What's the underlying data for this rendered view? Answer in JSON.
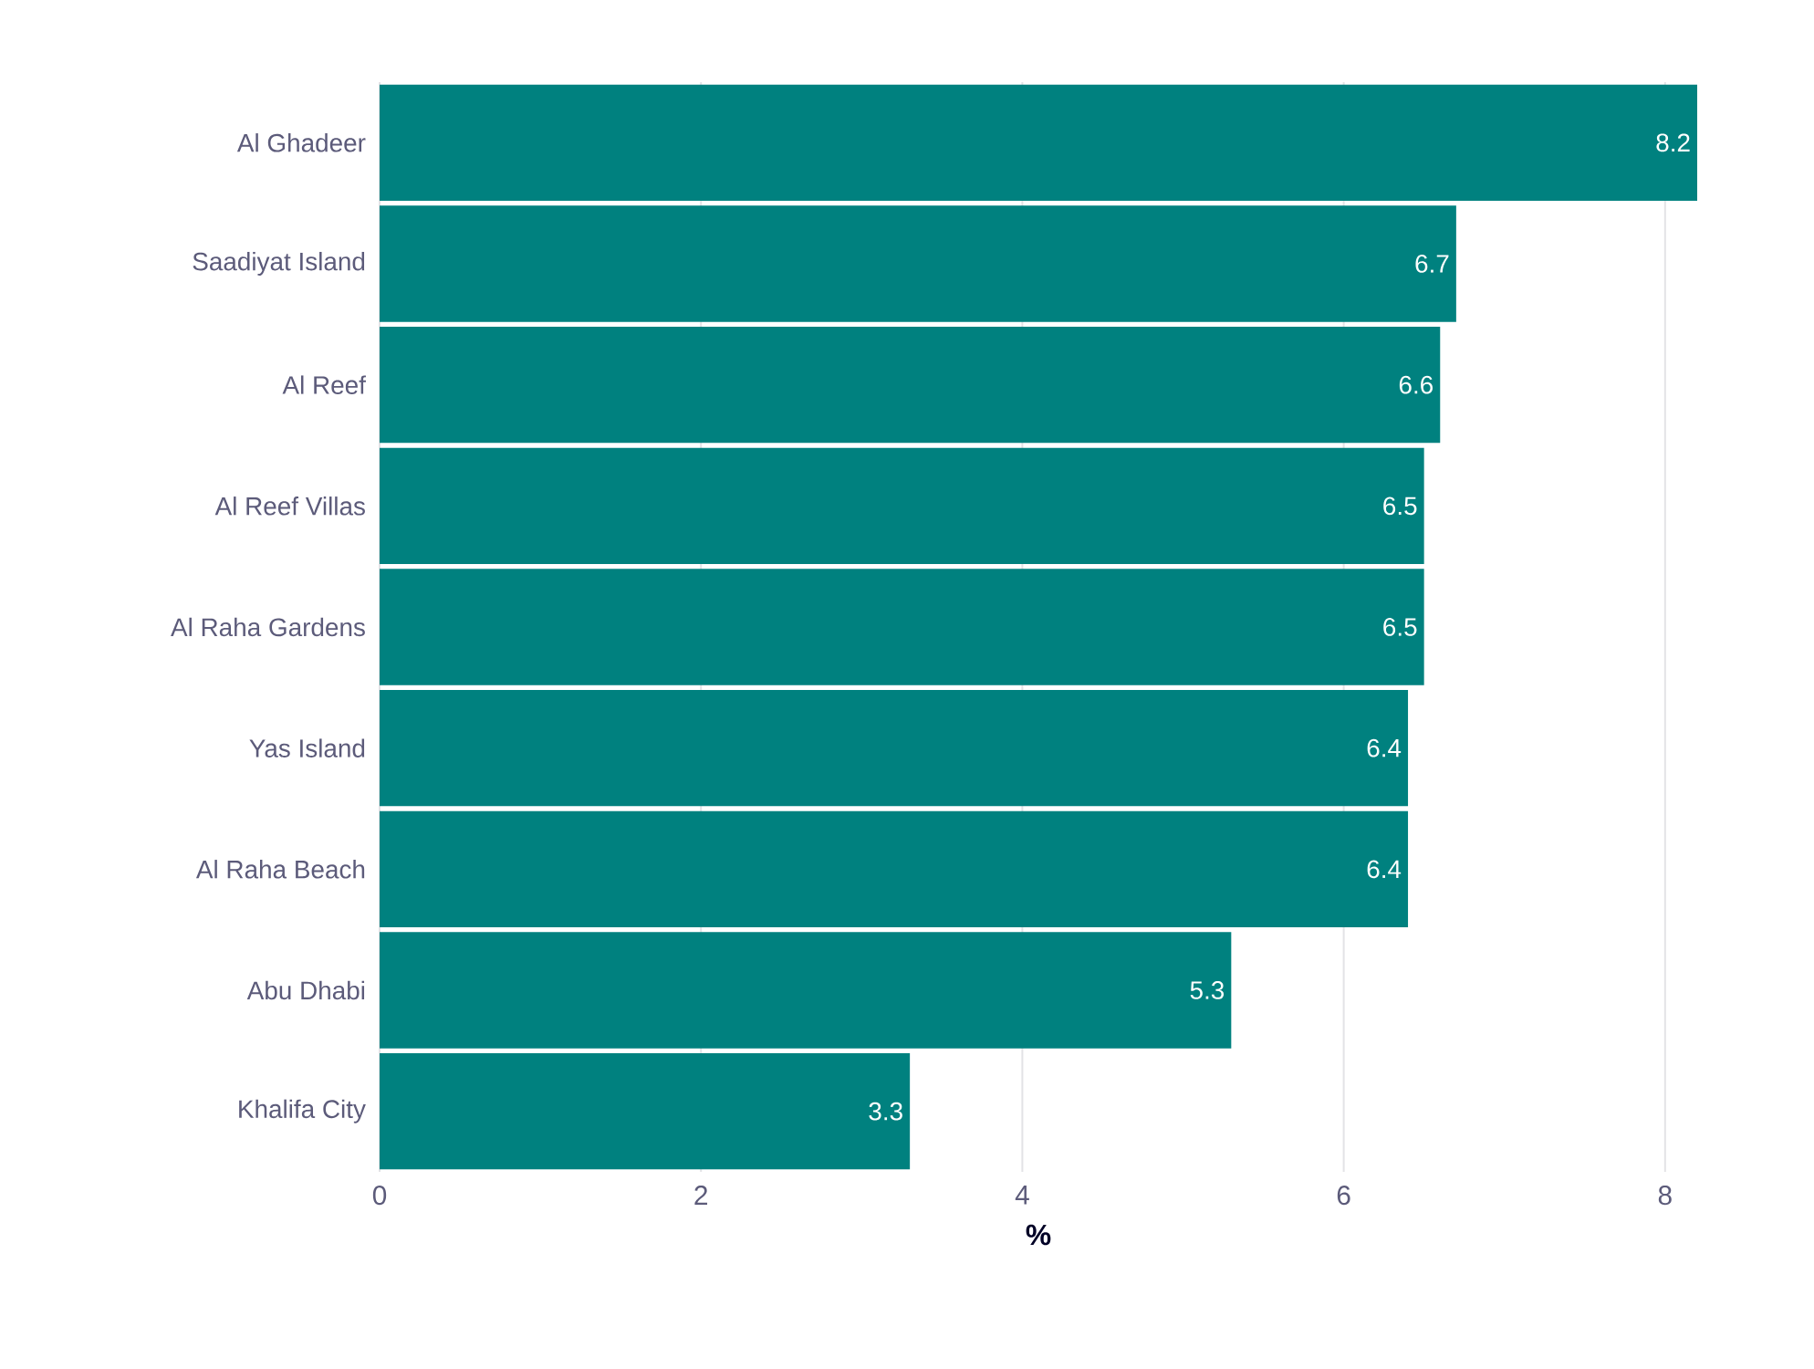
{
  "chart_data": {
    "type": "bar",
    "orientation": "horizontal",
    "xlabel": "%",
    "categories": [
      "Al Ghadeer",
      "Saadiyat Island",
      "Al Reef",
      "Al Reef Villas",
      "Al Raha Gardens",
      "Yas Island",
      "Al Raha Beach",
      "Abu Dhabi",
      "Khalifa City"
    ],
    "values": [
      8.2,
      6.7,
      6.6,
      6.5,
      6.5,
      6.4,
      6.4,
      5.3,
      3.3
    ],
    "value_labels": [
      "8.2",
      "6.7",
      "6.6",
      "6.5",
      "6.5",
      "6.4",
      "6.4",
      "5.3",
      "3.3"
    ],
    "color": "#00817f",
    "xlim": [
      0,
      8.2
    ],
    "xticks": [
      0,
      2,
      4,
      6,
      8
    ],
    "grid": "x"
  }
}
